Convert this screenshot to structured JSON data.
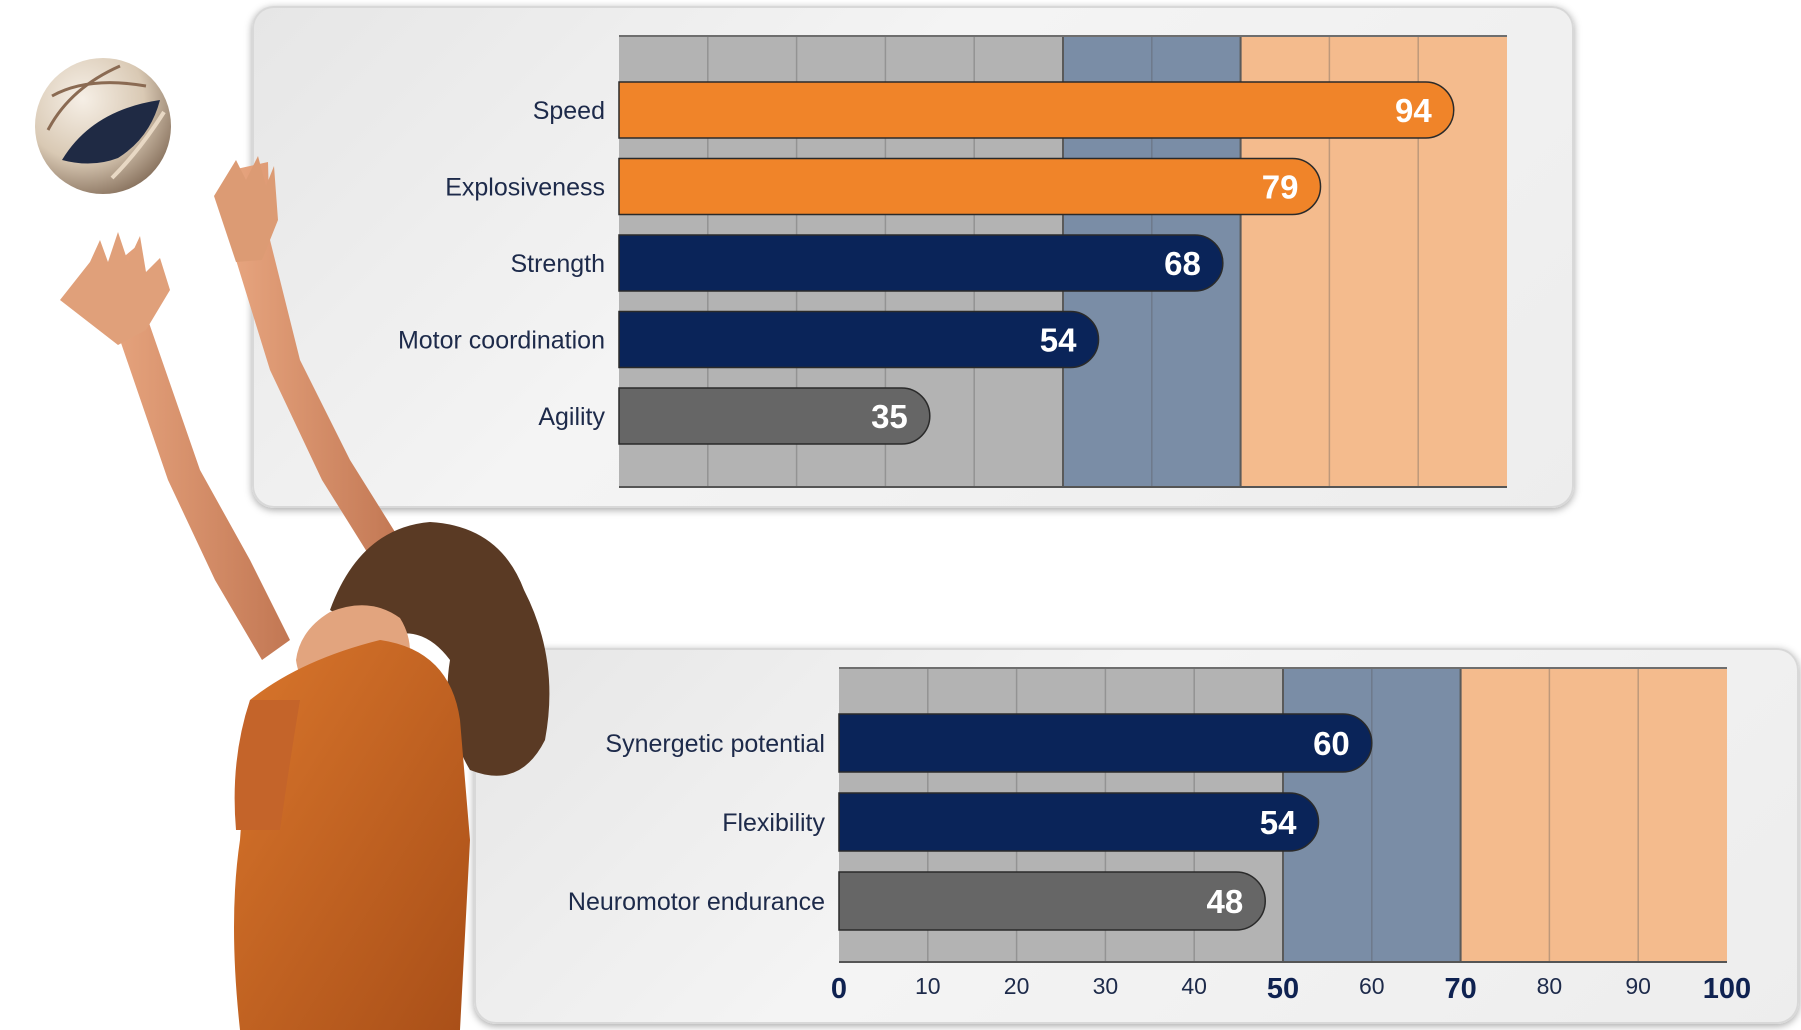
{
  "colors": {
    "zone_low": "#b3b3b3",
    "zone_mid": "#7a8da6",
    "zone_high": "#f4bb8d",
    "bar_orange": "#f08429",
    "bar_navy": "#0a2459",
    "bar_gray": "#666666",
    "zone_line": "#5a5a5a"
  },
  "chart_data": [
    {
      "type": "bar",
      "orientation": "horizontal",
      "categories": [
        "Speed",
        "Explosiveness",
        "Strength",
        "Motor coordination",
        "Agility"
      ],
      "values": [
        94,
        79,
        68,
        54,
        35
      ],
      "bar_colors": [
        "orange",
        "orange",
        "navy",
        "navy",
        "gray"
      ],
      "xlim": [
        0,
        100
      ],
      "zones": [
        {
          "from": 0,
          "to": 50,
          "color": "low"
        },
        {
          "from": 50,
          "to": 70,
          "color": "mid"
        },
        {
          "from": 70,
          "to": 100,
          "color": "high"
        }
      ],
      "grid": true
    },
    {
      "type": "bar",
      "orientation": "horizontal",
      "categories": [
        "Synergetic potential",
        "Flexibility",
        "Neuromotor endurance"
      ],
      "values": [
        60,
        54,
        48
      ],
      "bar_colors": [
        "navy",
        "navy",
        "gray"
      ],
      "xlim": [
        0,
        100
      ],
      "xticks": [
        0,
        10,
        20,
        30,
        40,
        50,
        60,
        70,
        80,
        90,
        100
      ],
      "xticks_bold": [
        0,
        50,
        70,
        100
      ],
      "zones": [
        {
          "from": 0,
          "to": 50,
          "color": "low"
        },
        {
          "from": 50,
          "to": 70,
          "color": "mid"
        },
        {
          "from": 70,
          "to": 100,
          "color": "high"
        }
      ],
      "grid": true
    }
  ]
}
